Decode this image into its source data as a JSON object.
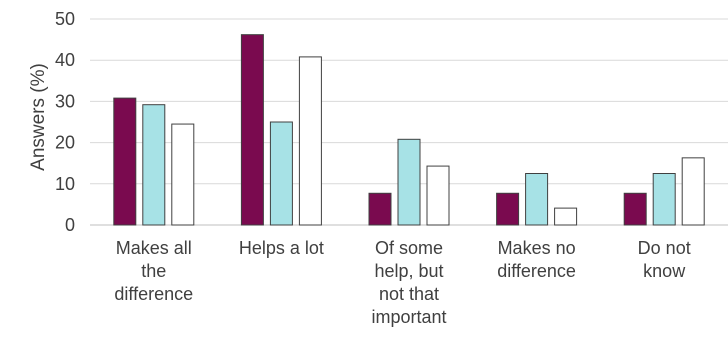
{
  "chart_data": {
    "type": "bar",
    "title": "",
    "xlabel": "",
    "ylabel": "Answers (%)",
    "ylim": [
      0,
      50
    ],
    "yticks": [
      0,
      10,
      20,
      30,
      40,
      50
    ],
    "grid": true,
    "legend": "none",
    "categories": [
      [
        "Makes all",
        "the",
        "difference"
      ],
      [
        "Helps a lot"
      ],
      [
        "Of some",
        "help, but",
        "not that",
        "important"
      ],
      [
        "Makes no",
        "difference"
      ],
      [
        "Do not",
        "know"
      ]
    ],
    "series": [
      {
        "values": [
          30.8,
          46.2,
          7.7,
          7.7,
          7.7
        ],
        "color": "#7a0a4f"
      },
      {
        "values": [
          29.2,
          25.0,
          20.8,
          12.5,
          12.5
        ],
        "color": "#a7e2e6"
      },
      {
        "values": [
          24.5,
          40.8,
          14.3,
          4.1,
          16.3
        ],
        "color": "#ffffff"
      }
    ]
  }
}
